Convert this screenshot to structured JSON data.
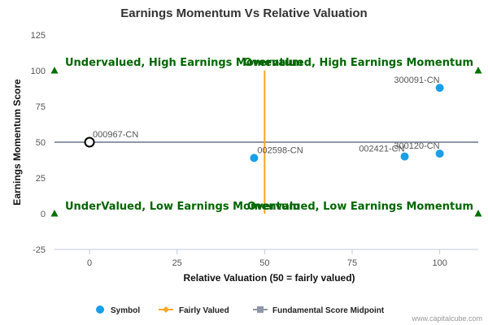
{
  "chart_data": {
    "type": "scatter",
    "title": "Earnings Momentum Vs Relative Valuation",
    "xlabel": "Relative Valuation (50 = fairly valued)",
    "ylabel": "Earnings Momentum Score",
    "xlim": [
      -10,
      111
    ],
    "ylim": [
      -25,
      125
    ],
    "xticks": [
      "0",
      "25",
      "50",
      "75",
      "100"
    ],
    "xtick_values": [
      0,
      25,
      50,
      75,
      100
    ],
    "yticks": [
      "125",
      "100",
      "75",
      "50",
      "25",
      "0",
      "-25"
    ],
    "ytick_values": [
      125,
      100,
      75,
      50,
      25,
      0,
      -25
    ],
    "grid": false,
    "legend_position": "bottom",
    "points": [
      {
        "label": "000967-CN",
        "x": 0,
        "y": 50,
        "hollow": true
      },
      {
        "label": "002598-CN",
        "x": 47,
        "y": 39,
        "hollow": false
      },
      {
        "label": "002421-CN",
        "x": 90,
        "y": 40,
        "hollow": false
      },
      {
        "label": "300120-CN",
        "x": 100,
        "y": 42,
        "hollow": false
      },
      {
        "label": "300091-CN",
        "x": 100,
        "y": 88,
        "hollow": false
      }
    ],
    "fairly_valued_line": {
      "x": 50,
      "y_from": 0,
      "y_to": 100
    },
    "midpoint_line": {
      "y": 50,
      "x_from": -10,
      "x_to": 111
    },
    "corner_markers": [
      {
        "x": -10,
        "y": 100
      },
      {
        "x": 111,
        "y": 100
      },
      {
        "x": -10,
        "y": 0
      },
      {
        "x": 111,
        "y": 0
      }
    ],
    "quadrants": {
      "top_left": "Undervalued, High Earnings Momentum",
      "top_right": "Overvalued, High Earnings Momentum",
      "bottom_left": "UnderValued, Low Earnings Momentum",
      "bottom_right": "Overvalued, Low Earnings Momentum"
    },
    "legend": {
      "symbol": "Symbol",
      "fairly_valued": "Fairly Valued",
      "midpoint": "Fundamental Score Midpoint"
    },
    "colors": {
      "point": "#1a9fe8",
      "fairly_valued": "#f5a623",
      "midpoint": "#8d97a8",
      "quadrant_text": "#006600",
      "marker": "#007000",
      "axis": "#c0c8d8"
    },
    "credit": "www.capitalcube.com"
  }
}
